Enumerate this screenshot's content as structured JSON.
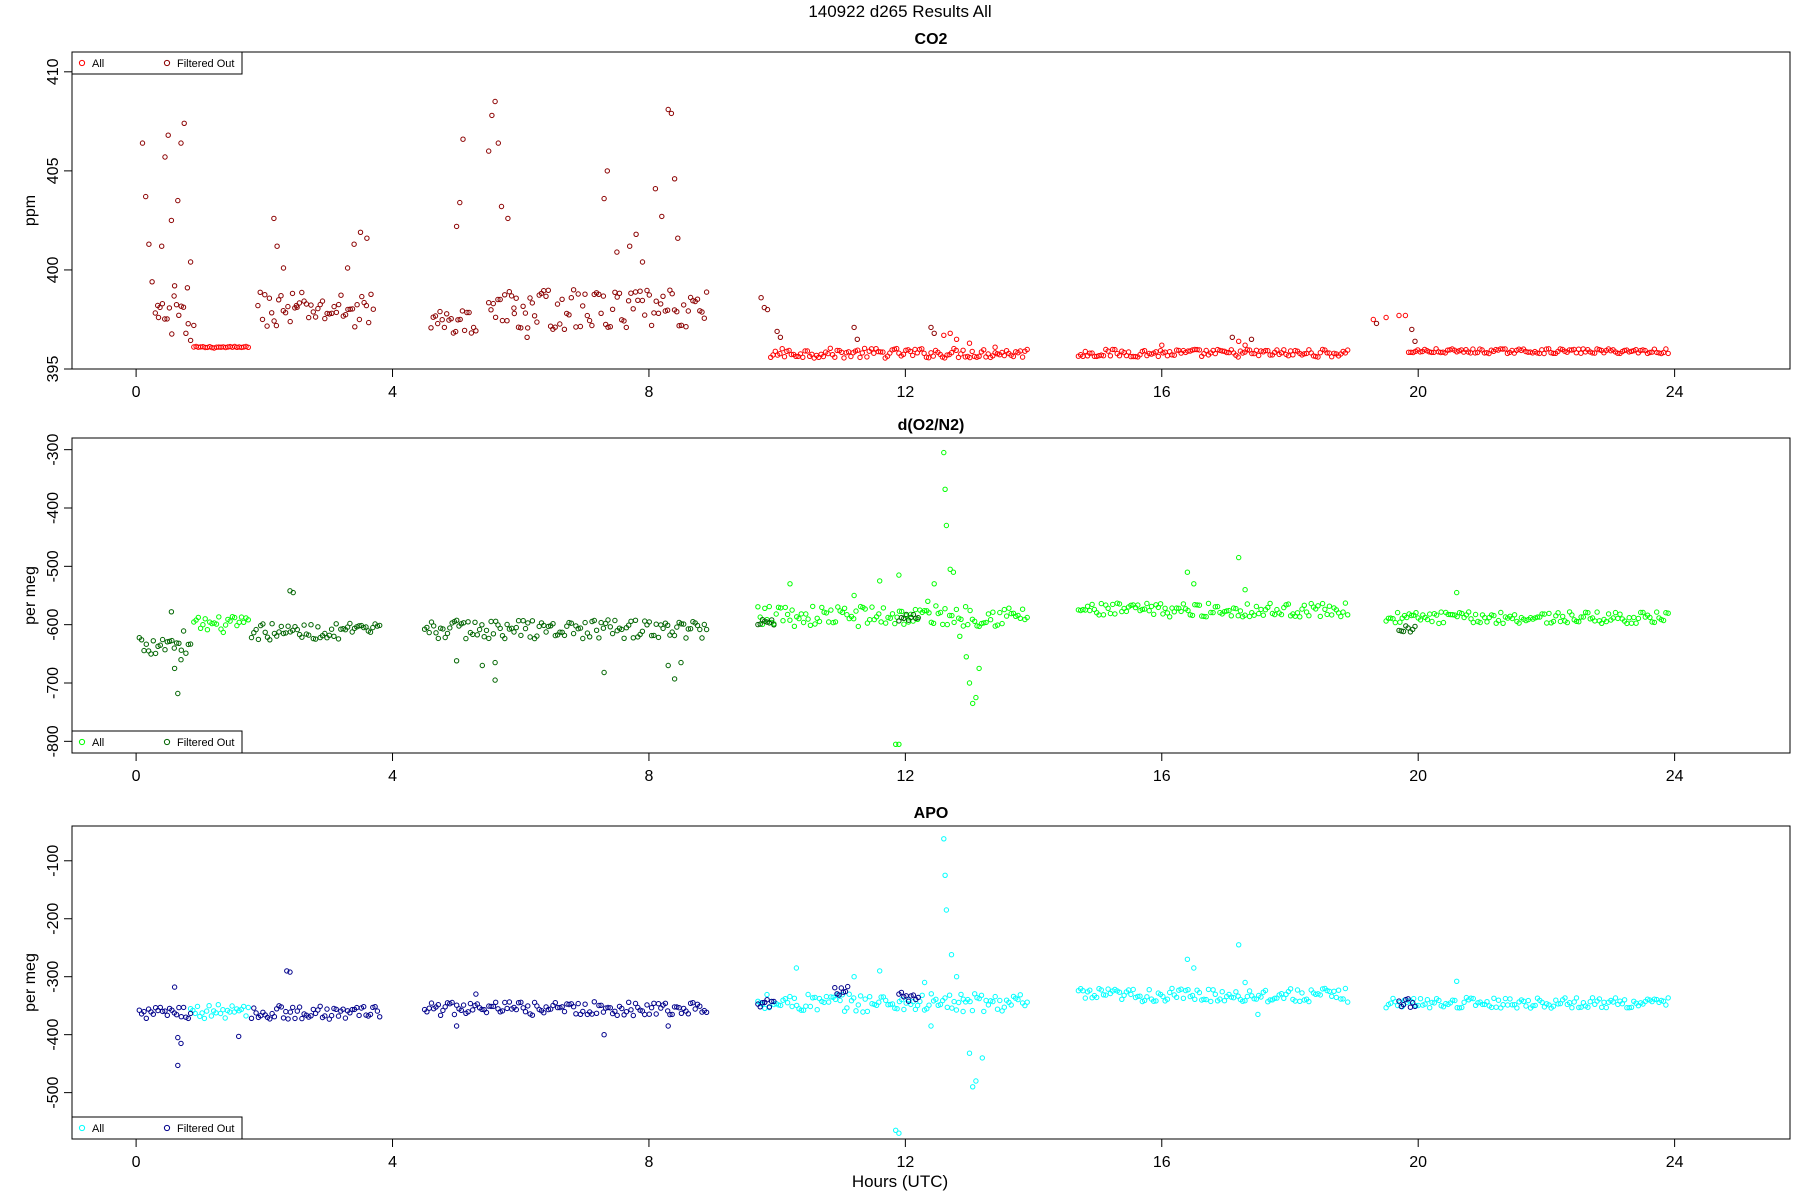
{
  "figure": {
    "suptitle": "140922   d265   Results All",
    "xlabel": "Hours (UTC)"
  },
  "colors": {
    "co2_all": "#ff0000",
    "co2_filtered": "#8b0000",
    "o2_all": "#00ff00",
    "o2_filtered": "#006400",
    "apo_all": "#00ffff",
    "apo_filtered": "#00008b",
    "axis": "#000000"
  },
  "chart_data": [
    {
      "type": "scatter",
      "title": "CO2",
      "ylabel": "ppm",
      "xlim": [
        -1.0,
        25.8
      ],
      "ylim": [
        395,
        411
      ],
      "xticks": [
        0,
        4,
        8,
        12,
        16,
        20,
        24
      ],
      "yticks": [
        395,
        400,
        405,
        410
      ],
      "legend_position": "top-left",
      "series": [
        {
          "name": "All",
          "color_key": "co2_all",
          "marker": "open-circle",
          "segments": [
            [
              0.9,
              1.75,
              396.1,
              0.04
            ],
            [
              9.9,
              13.9,
              395.8,
              0.25
            ],
            [
              14.7,
              18.9,
              395.8,
              0.2
            ],
            [
              19.85,
              23.9,
              395.9,
              0.12
            ]
          ],
          "points": [
            [
              12.6,
              396.7
            ],
            [
              12.7,
              396.8
            ],
            [
              12.8,
              396.5
            ],
            [
              13.0,
              396.3
            ],
            [
              13.4,
              396.1
            ],
            [
              16.0,
              396.2
            ],
            [
              17.2,
              396.4
            ],
            [
              17.3,
              396.2
            ],
            [
              19.3,
              397.5
            ],
            [
              19.5,
              397.6
            ],
            [
              19.7,
              397.7
            ],
            [
              19.8,
              397.7
            ]
          ]
        },
        {
          "name": "Filtered Out",
          "color_key": "co2_filtered",
          "marker": "open-circle",
          "segments": [
            [
              0.3,
              0.85,
              397.5,
              1.2
            ],
            [
              1.9,
              3.7,
              398.0,
              0.9
            ],
            [
              4.6,
              5.3,
              397.4,
              0.6
            ],
            [
              5.5,
              8.9,
              398.0,
              1.0
            ]
          ],
          "points": [
            [
              0.1,
              406.4
            ],
            [
              0.15,
              403.7
            ],
            [
              0.2,
              401.3
            ],
            [
              0.25,
              399.4
            ],
            [
              0.35,
              397.6
            ],
            [
              0.4,
              401.2
            ],
            [
              0.45,
              405.7
            ],
            [
              0.5,
              406.8
            ],
            [
              0.55,
              402.5
            ],
            [
              0.6,
              399.2
            ],
            [
              0.65,
              403.5
            ],
            [
              0.7,
              406.4
            ],
            [
              0.75,
              407.4
            ],
            [
              0.8,
              399.1
            ],
            [
              0.85,
              400.4
            ],
            [
              0.9,
              397.2
            ],
            [
              2.15,
              402.6
            ],
            [
              2.2,
              401.2
            ],
            [
              2.3,
              400.1
            ],
            [
              2.5,
              398.2
            ],
            [
              3.3,
              400.1
            ],
            [
              3.4,
              401.3
            ],
            [
              3.5,
              401.9
            ],
            [
              3.6,
              401.6
            ],
            [
              5.0,
              402.2
            ],
            [
              5.05,
              403.4
            ],
            [
              5.1,
              406.6
            ],
            [
              5.5,
              406.0
            ],
            [
              5.55,
              407.8
            ],
            [
              5.6,
              408.5
            ],
            [
              5.65,
              406.4
            ],
            [
              5.7,
              403.2
            ],
            [
              5.8,
              402.6
            ],
            [
              5.9,
              397.8
            ],
            [
              6.1,
              396.6
            ],
            [
              7.3,
              403.6
            ],
            [
              7.35,
              405.0
            ],
            [
              7.5,
              400.9
            ],
            [
              7.7,
              401.2
            ],
            [
              7.8,
              401.8
            ],
            [
              7.9,
              400.4
            ],
            [
              8.1,
              404.1
            ],
            [
              8.2,
              402.7
            ],
            [
              8.3,
              408.1
            ],
            [
              8.35,
              407.9
            ],
            [
              8.4,
              404.6
            ],
            [
              8.45,
              401.6
            ],
            [
              9.75,
              398.6
            ],
            [
              9.8,
              398.1
            ],
            [
              9.85,
              398.0
            ],
            [
              10.0,
              396.9
            ],
            [
              10.05,
              396.6
            ],
            [
              11.2,
              397.1
            ],
            [
              11.25,
              396.5
            ],
            [
              12.4,
              397.1
            ],
            [
              12.45,
              396.8
            ],
            [
              17.1,
              396.6
            ],
            [
              17.4,
              396.5
            ],
            [
              19.35,
              397.3
            ],
            [
              19.9,
              397.0
            ],
            [
              19.95,
              396.4
            ]
          ]
        }
      ]
    },
    {
      "type": "scatter",
      "title": "d(O2/N2)",
      "ylabel": "per meg",
      "xlim": [
        -1.0,
        25.8
      ],
      "ylim": [
        -820,
        -280
      ],
      "xticks": [
        0,
        4,
        8,
        12,
        16,
        20,
        24
      ],
      "yticks": [
        -800,
        -700,
        -600,
        -500,
        -400,
        -300
      ],
      "legend_position": "bottom-left",
      "series": [
        {
          "name": "All",
          "color_key": "o2_all",
          "marker": "open-circle",
          "segments": [
            [
              0.9,
              1.75,
              -600,
              14
            ],
            [
              9.7,
              13.9,
              -585,
              18
            ],
            [
              14.7,
              18.9,
              -575,
              12
            ],
            [
              19.5,
              23.9,
              -588,
              10
            ]
          ],
          "points": [
            [
              10.2,
              -530
            ],
            [
              11.2,
              -550
            ],
            [
              11.6,
              -525
            ],
            [
              11.9,
              -515
            ],
            [
              11.85,
              -805
            ],
            [
              11.9,
              -805
            ],
            [
              12.35,
              -560
            ],
            [
              12.45,
              -530
            ],
            [
              12.6,
              -305
            ],
            [
              12.62,
              -368
            ],
            [
              12.64,
              -430
            ],
            [
              12.7,
              -505
            ],
            [
              12.75,
              -510
            ],
            [
              12.85,
              -620
            ],
            [
              12.95,
              -655
            ],
            [
              13.0,
              -700
            ],
            [
              13.05,
              -735
            ],
            [
              13.1,
              -725
            ],
            [
              13.15,
              -675
            ],
            [
              16.4,
              -510
            ],
            [
              16.5,
              -530
            ],
            [
              17.2,
              -485
            ],
            [
              17.3,
              -540
            ],
            [
              20.6,
              -545
            ]
          ]
        },
        {
          "name": "Filtered Out",
          "color_key": "o2_filtered",
          "marker": "open-circle",
          "segments": [
            [
              0.05,
              0.85,
              -630,
              22
            ],
            [
              1.8,
              3.8,
              -612,
              14
            ],
            [
              4.5,
              8.9,
              -608,
              16
            ],
            [
              9.7,
              9.95,
              -595,
              8
            ],
            [
              11.9,
              12.2,
              -588,
              8
            ],
            [
              19.7,
              19.95,
              -605,
              8
            ]
          ],
          "points": [
            [
              0.6,
              -675
            ],
            [
              0.65,
              -718
            ],
            [
              0.7,
              -660
            ],
            [
              0.55,
              -578
            ],
            [
              2.4,
              -542
            ],
            [
              2.45,
              -545
            ],
            [
              5.0,
              -662
            ],
            [
              5.4,
              -670
            ],
            [
              5.6,
              -695
            ],
            [
              5.6,
              -665
            ],
            [
              7.3,
              -682
            ],
            [
              8.3,
              -670
            ],
            [
              8.4,
              -693
            ],
            [
              8.5,
              -665
            ]
          ]
        }
      ]
    },
    {
      "type": "scatter",
      "title": "APO",
      "ylabel": "per meg",
      "xlim": [
        -1.0,
        25.8
      ],
      "ylim": [
        -580,
        -40
      ],
      "xticks": [
        0,
        4,
        8,
        12,
        16,
        20,
        24
      ],
      "yticks": [
        -500,
        -400,
        -300,
        -200,
        -100
      ],
      "legend_position": "bottom-left",
      "series": [
        {
          "name": "All",
          "color_key": "apo_all",
          "marker": "open-circle",
          "segments": [
            [
              0.85,
              1.75,
              -360,
              12
            ],
            [
              9.7,
              13.9,
              -345,
              16
            ],
            [
              14.7,
              18.9,
              -332,
              12
            ],
            [
              19.5,
              23.9,
              -345,
              9
            ]
          ],
          "points": [
            [
              10.3,
              -285
            ],
            [
              11.2,
              -300
            ],
            [
              11.6,
              -290
            ],
            [
              11.85,
              -565
            ],
            [
              11.9,
              -570
            ],
            [
              12.3,
              -310
            ],
            [
              12.4,
              -385
            ],
            [
              12.6,
              -62
            ],
            [
              12.62,
              -125
            ],
            [
              12.64,
              -185
            ],
            [
              12.72,
              -262
            ],
            [
              12.8,
              -300
            ],
            [
              12.9,
              -360
            ],
            [
              13.0,
              -432
            ],
            [
              13.05,
              -490
            ],
            [
              13.1,
              -480
            ],
            [
              13.2,
              -440
            ],
            [
              16.4,
              -270
            ],
            [
              16.5,
              -285
            ],
            [
              17.2,
              -245
            ],
            [
              17.3,
              -310
            ],
            [
              17.5,
              -365
            ],
            [
              20.6,
              -308
            ]
          ]
        },
        {
          "name": "Filtered Out",
          "color_key": "apo_filtered",
          "marker": "open-circle",
          "segments": [
            [
              0.05,
              0.85,
              -362,
              10
            ],
            [
              1.8,
              3.8,
              -362,
              12
            ],
            [
              4.5,
              8.9,
              -355,
              12
            ],
            [
              9.7,
              9.95,
              -345,
              8
            ],
            [
              10.9,
              11.1,
              -325,
              8
            ],
            [
              11.9,
              12.2,
              -335,
              8
            ],
            [
              19.7,
              19.95,
              -345,
              8
            ]
          ],
          "points": [
            [
              0.6,
              -318
            ],
            [
              0.65,
              -405
            ],
            [
              0.7,
              -415
            ],
            [
              0.65,
              -453
            ],
            [
              2.35,
              -290
            ],
            [
              2.4,
              -292
            ],
            [
              1.6,
              -403
            ],
            [
              5.0,
              -385
            ],
            [
              5.3,
              -330
            ],
            [
              7.3,
              -400
            ],
            [
              8.3,
              -385
            ]
          ]
        }
      ]
    }
  ]
}
